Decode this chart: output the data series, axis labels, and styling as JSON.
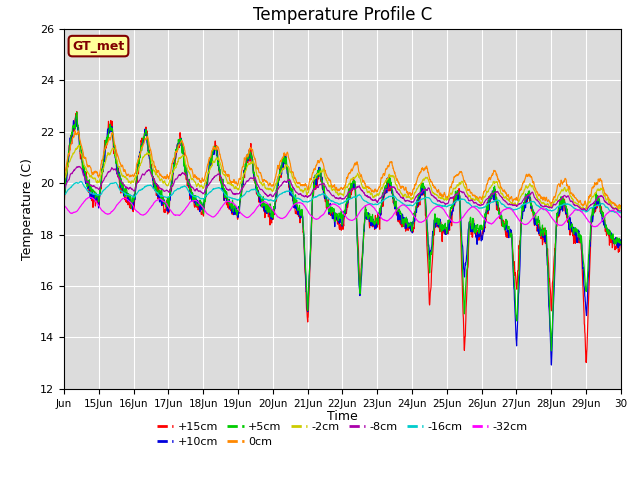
{
  "title": "Temperature Profile C",
  "xlabel": "Time",
  "ylabel": "Temperature (C)",
  "ylim": [
    12,
    26
  ],
  "xlim": [
    0,
    16
  ],
  "background_color": "#ffffff",
  "plot_bg_color": "#dcdcdc",
  "annotation_text": "GT_met",
  "annotation_bg": "#ffff99",
  "annotation_border": "#800000",
  "annotation_text_color": "#800000",
  "x_tick_labels": [
    "Jun",
    "15Jun",
    "16Jun",
    "17Jun",
    "18Jun",
    "19Jun",
    "20Jun",
    "21Jun",
    "22Jun",
    "23Jun",
    "24Jun",
    "25Jun",
    "26Jun",
    "27Jun",
    "28Jun",
    "29Jun",
    "30"
  ],
  "yticks": [
    12,
    14,
    16,
    18,
    20,
    22,
    24,
    26
  ],
  "series": [
    {
      "label": "+15cm",
      "color": "#ff0000"
    },
    {
      "label": "+10cm",
      "color": "#0000dd"
    },
    {
      "label": "+5cm",
      "color": "#00cc00"
    },
    {
      "label": "0cm",
      "color": "#ff8800"
    },
    {
      "label": "-2cm",
      "color": "#cccc00"
    },
    {
      "label": "-8cm",
      "color": "#aa00aa"
    },
    {
      "label": "-16cm",
      "color": "#00cccc"
    },
    {
      "label": "-32cm",
      "color": "#ff00ff"
    }
  ]
}
